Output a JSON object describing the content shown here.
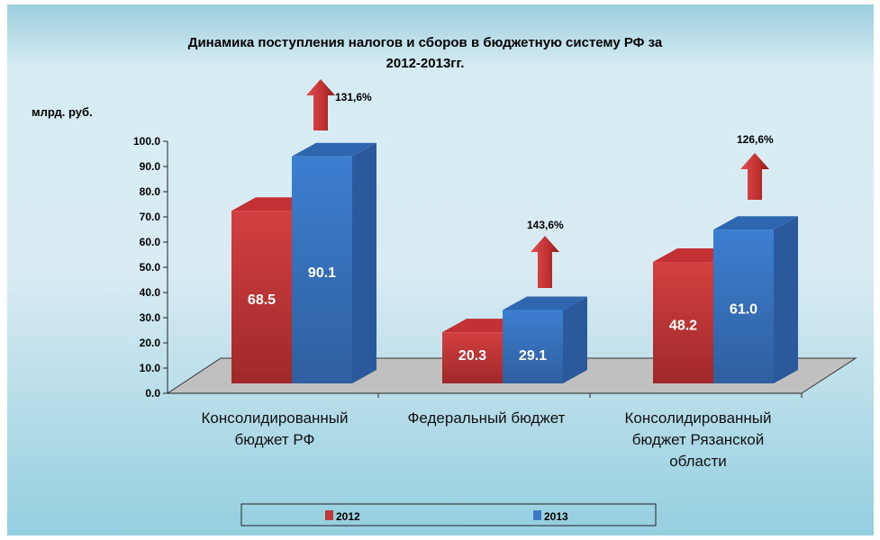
{
  "chart_data": {
    "type": "bar",
    "title_line1": "Динамика поступления налогов и сборов в бюджетную систему РФ за",
    "title_line2": "2012-2013гг.",
    "ylabel": "млрд. руб.",
    "ylim": [
      0,
      100
    ],
    "yticks": [
      "0.0",
      "10.0",
      "20.0",
      "30.0",
      "40.0",
      "50.0",
      "60.0",
      "70.0",
      "80.0",
      "90.0",
      "100.0"
    ],
    "categories": [
      [
        "Консолидированный",
        "бюджет РФ"
      ],
      [
        "Федеральный бюджет"
      ],
      [
        "Консолидированный",
        "бюджет Рязанской",
        "области"
      ]
    ],
    "series": [
      {
        "name": "2012",
        "color": "#c0393b",
        "values": [
          68.5,
          20.3,
          48.2
        ],
        "labels": [
          "68.5",
          "20.3",
          "48.2"
        ]
      },
      {
        "name": "2013",
        "color": "#3a78c8",
        "values": [
          90.1,
          29.1,
          61.0
        ],
        "labels": [
          "90.1",
          "29.1",
          "61.0"
        ]
      }
    ],
    "growth_labels": [
      "131,6%",
      "143,6%",
      "126,6%"
    ],
    "legend": {
      "position": "bottom",
      "items": [
        "2012",
        "2013"
      ]
    }
  }
}
